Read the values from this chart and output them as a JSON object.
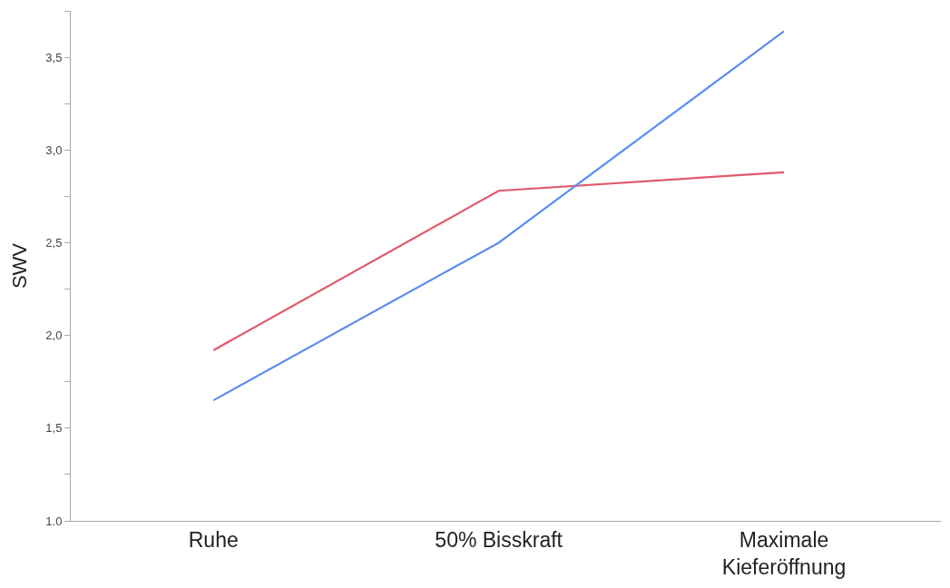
{
  "chart_data": {
    "type": "line",
    "ylabel": "SWV",
    "categories": [
      "Ruhe",
      "50% Bisskraft",
      "Maximale\nKieferöffnung"
    ],
    "series": [
      {
        "color": "#e05a6b",
        "values": [
          1.92,
          2.78,
          2.88
        ]
      },
      {
        "color": "#5b8ded",
        "values": [
          1.65,
          2.5,
          3.64
        ]
      }
    ],
    "ylim": [
      1.0,
      3.75
    ],
    "yticks": [
      {
        "value": 1.0,
        "label": "1.0"
      },
      {
        "value": 1.25,
        "label": null
      },
      {
        "value": 1.5,
        "label": "1,5"
      },
      {
        "value": 1.75,
        "label": null
      },
      {
        "value": 2.0,
        "label": "2,0"
      },
      {
        "value": 2.25,
        "label": null
      },
      {
        "value": 2.5,
        "label": "2,5"
      },
      {
        "value": 2.75,
        "label": null
      },
      {
        "value": 3.0,
        "label": "3,0"
      },
      {
        "value": 3.25,
        "label": null
      },
      {
        "value": 3.5,
        "label": "3,5"
      },
      {
        "value": 3.75,
        "label": null
      }
    ],
    "legend": false,
    "marker": "none",
    "line_style": "solid"
  }
}
